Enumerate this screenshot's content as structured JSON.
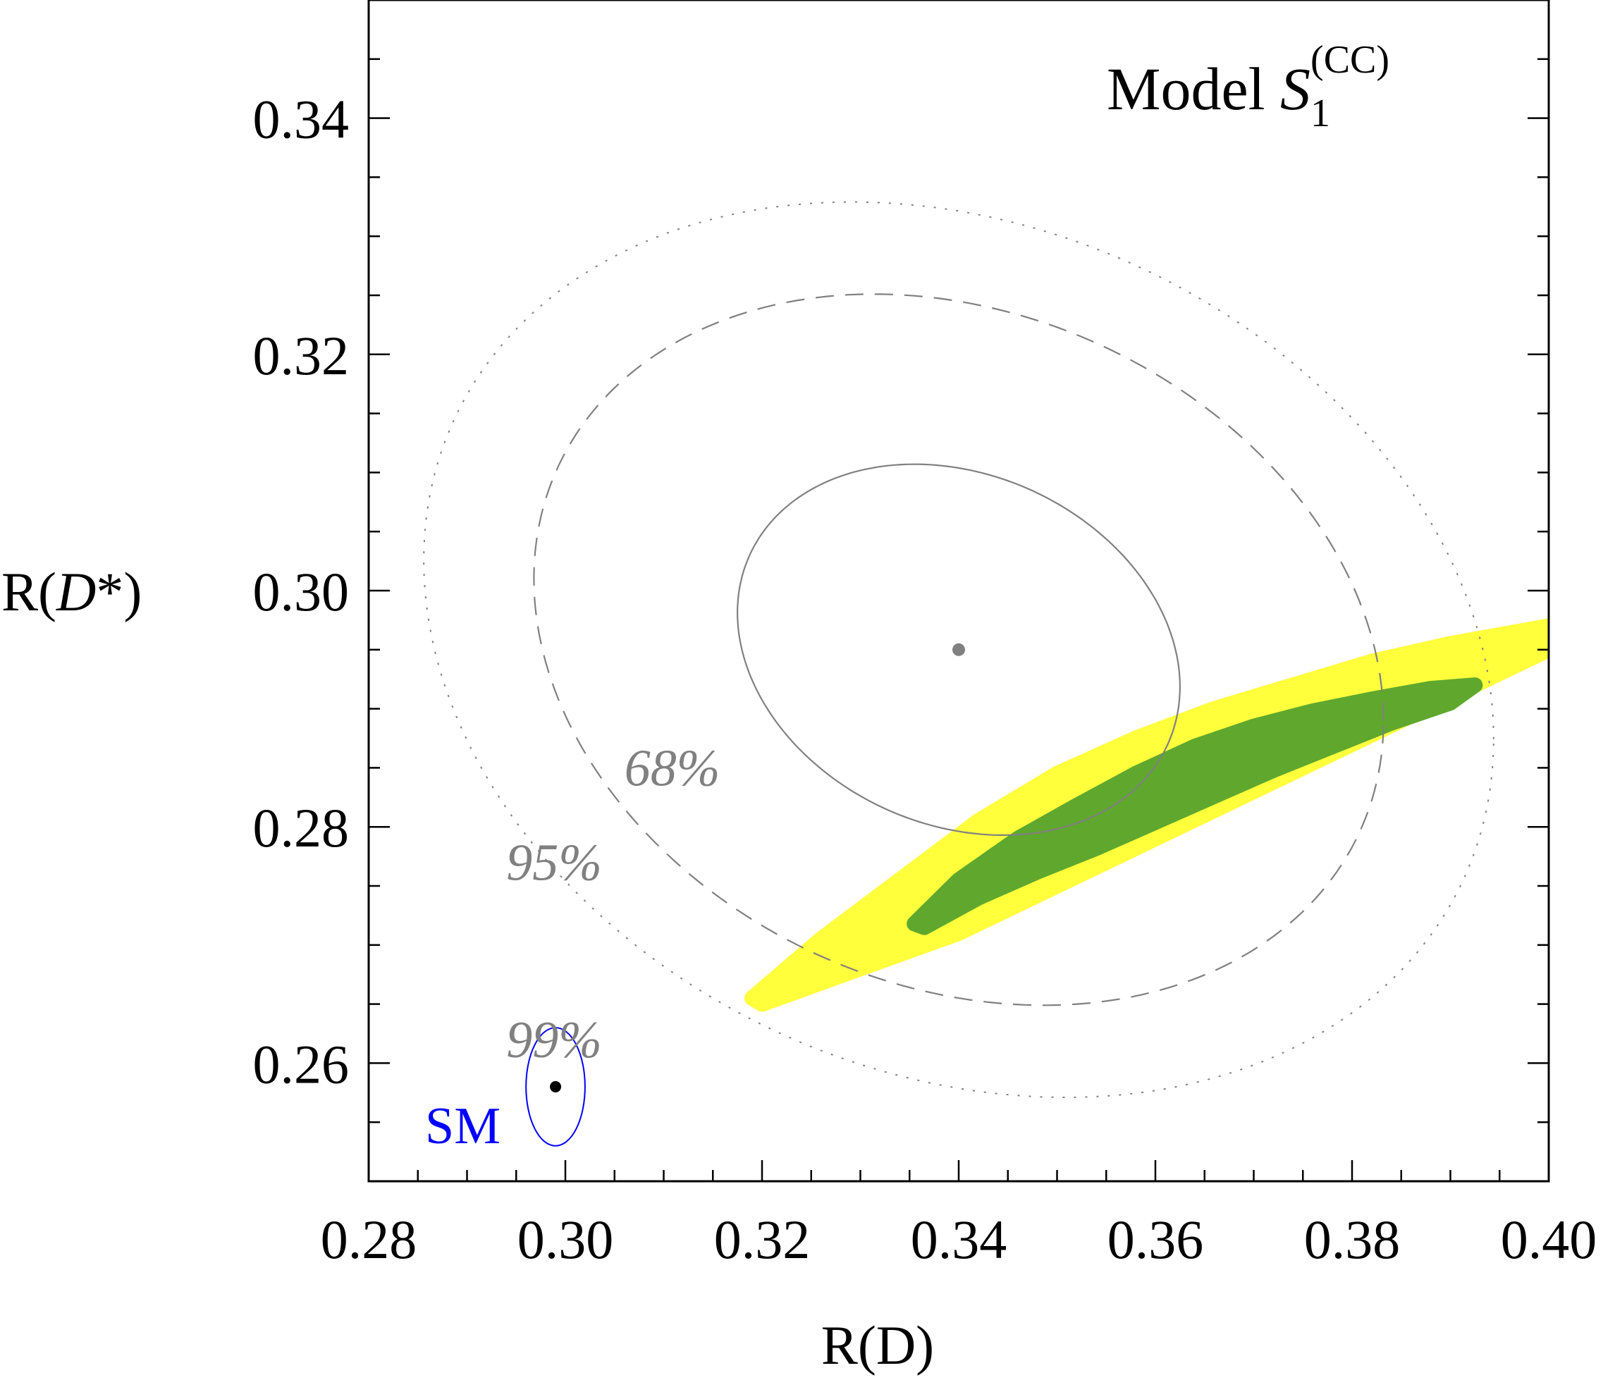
{
  "chart_data": {
    "type": "scatter",
    "title": "Model S1(CC)",
    "title_parts": {
      "prefix": "Model ",
      "symbol": "S",
      "subscript": "1",
      "superscript": "(CC)"
    },
    "xlabel": "R(D)",
    "ylabel": {
      "prefix": "R(",
      "symbol": "D",
      "suffix": "*)"
    },
    "xlim": [
      0.28,
      0.4
    ],
    "ylim": [
      0.25,
      0.35
    ],
    "xticks": [
      "0.28",
      "0.30",
      "0.32",
      "0.34",
      "0.36",
      "0.38",
      "0.40"
    ],
    "yticks": [
      "0.26",
      "0.28",
      "0.30",
      "0.32",
      "0.34"
    ],
    "experimental_central": {
      "x": 0.34,
      "y": 0.295
    },
    "confidence_ellipses": [
      {
        "label": "68%",
        "center": [
          0.34,
          0.295
        ],
        "semi_axis_rd": 0.0225,
        "semi_axis_rdstar": 0.0157,
        "rho": -0.2,
        "style": "solid",
        "label_at": [
          0.306,
          0.2835
        ]
      },
      {
        "label": "95%",
        "center": [
          0.34,
          0.295
        ],
        "semi_axis_rd": 0.0432,
        "semi_axis_rdstar": 0.0301,
        "rho": -0.2,
        "style": "dashed",
        "label_at": [
          0.294,
          0.2755
        ]
      },
      {
        "label": "99%",
        "center": [
          0.34,
          0.295
        ],
        "semi_axis_rd": 0.0544,
        "semi_axis_rdstar": 0.0379,
        "rho": -0.2,
        "style": "dotted",
        "label_at": [
          0.294,
          0.2605
        ]
      }
    ],
    "sm": {
      "label": "SM",
      "x": 0.299,
      "y": 0.258,
      "err_x": 0.003,
      "err_y": 0.005
    },
    "series": [
      {
        "name": "yellow region",
        "color": "#ffff3c",
        "points": [
          [
            0.319,
            0.2655
          ],
          [
            0.326,
            0.2705
          ],
          [
            0.334,
            0.2755
          ],
          [
            0.342,
            0.2805
          ],
          [
            0.35,
            0.2845
          ],
          [
            0.358,
            0.2875
          ],
          [
            0.366,
            0.29
          ],
          [
            0.374,
            0.292
          ],
          [
            0.382,
            0.294
          ],
          [
            0.39,
            0.2955
          ],
          [
            0.4,
            0.297
          ],
          [
            0.4,
            0.295
          ],
          [
            0.39,
            0.291
          ],
          [
            0.38,
            0.287
          ],
          [
            0.37,
            0.283
          ],
          [
            0.36,
            0.279
          ],
          [
            0.35,
            0.275
          ],
          [
            0.34,
            0.271
          ],
          [
            0.33,
            0.268
          ],
          [
            0.32,
            0.265
          ]
        ]
      },
      {
        "name": "green region",
        "color": "#5fa82d",
        "points": [
          [
            0.3355,
            0.2718
          ],
          [
            0.34,
            0.2755
          ],
          [
            0.346,
            0.279
          ],
          [
            0.352,
            0.2818
          ],
          [
            0.358,
            0.2845
          ],
          [
            0.364,
            0.2868
          ],
          [
            0.37,
            0.2885
          ],
          [
            0.376,
            0.2898
          ],
          [
            0.382,
            0.2908
          ],
          [
            0.388,
            0.2917
          ],
          [
            0.3925,
            0.292
          ],
          [
            0.39,
            0.2905
          ],
          [
            0.384,
            0.2888
          ],
          [
            0.378,
            0.2868
          ],
          [
            0.372,
            0.2848
          ],
          [
            0.366,
            0.2826
          ],
          [
            0.36,
            0.2804
          ],
          [
            0.354,
            0.2782
          ],
          [
            0.348,
            0.2762
          ],
          [
            0.342,
            0.274
          ],
          [
            0.3365,
            0.2715
          ]
        ]
      }
    ]
  },
  "colors": {
    "yellow": "#ffff3c",
    "green": "#5fa82d",
    "contour": "#808080",
    "sm": "#0000ff",
    "axis": "#000000"
  }
}
